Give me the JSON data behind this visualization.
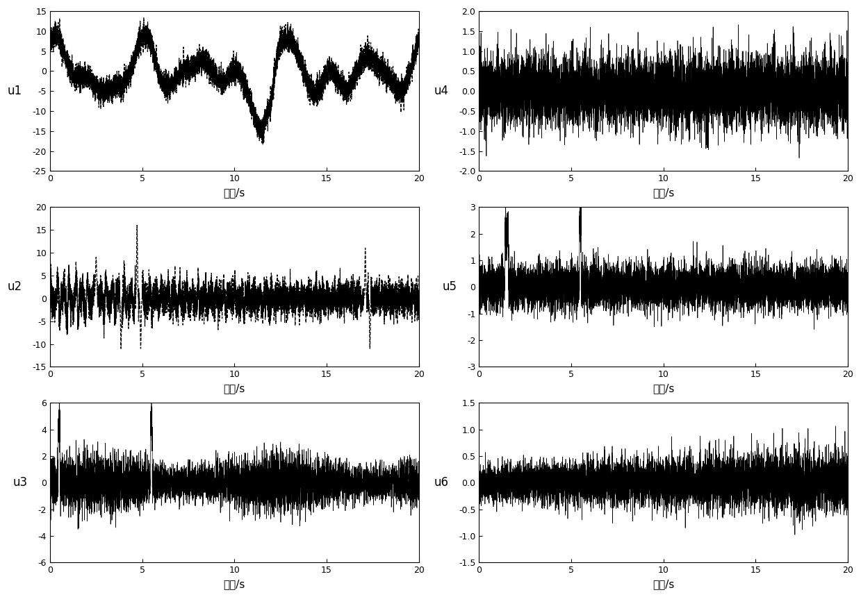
{
  "subplots": [
    {
      "label": "u1",
      "ylim": [
        -25,
        15
      ],
      "yticks": [
        -25,
        -20,
        -15,
        -10,
        -5,
        0,
        5,
        10,
        15
      ],
      "linestyle": "--",
      "lw": 0.9,
      "seed": 42,
      "type": "u1"
    },
    {
      "label": "u4",
      "ylim": [
        -2.0,
        2.0
      ],
      "yticks": [
        -2.0,
        -1.5,
        -1.0,
        -0.5,
        0.0,
        0.5,
        1.0,
        1.5,
        2.0
      ],
      "linestyle": "-",
      "lw": 0.5,
      "seed": 10,
      "type": "u4"
    },
    {
      "label": "u2",
      "ylim": [
        -15,
        20
      ],
      "yticks": [
        -15,
        -10,
        -5,
        0,
        5,
        10,
        15,
        20
      ],
      "linestyle": "--",
      "lw": 0.9,
      "seed": 7,
      "type": "u2"
    },
    {
      "label": "u5",
      "ylim": [
        -3,
        3
      ],
      "yticks": [
        -3,
        -2,
        -1,
        0,
        1,
        2,
        3
      ],
      "linestyle": "-",
      "lw": 0.5,
      "seed": 11,
      "type": "u5"
    },
    {
      "label": "u3",
      "ylim": [
        -6,
        6
      ],
      "yticks": [
        -6,
        -4,
        -2,
        0,
        2,
        4,
        6
      ],
      "linestyle": "-",
      "lw": 0.5,
      "seed": 5,
      "type": "u3"
    },
    {
      "label": "u6",
      "ylim": [
        -1.5,
        1.5
      ],
      "yticks": [
        -1.5,
        -1.0,
        -0.5,
        0.0,
        0.5,
        1.0,
        1.5
      ],
      "linestyle": "-",
      "lw": 0.5,
      "seed": 13,
      "type": "u6"
    }
  ],
  "xlim": [
    0,
    20
  ],
  "xticks": [
    0,
    5,
    10,
    15,
    20
  ],
  "xlabel": "时间/s",
  "n_points": 8000,
  "background_color": "#ffffff",
  "line_color": "#000000",
  "tick_fontsize": 9,
  "label_fontsize": 12,
  "xlabel_fontsize": 11
}
